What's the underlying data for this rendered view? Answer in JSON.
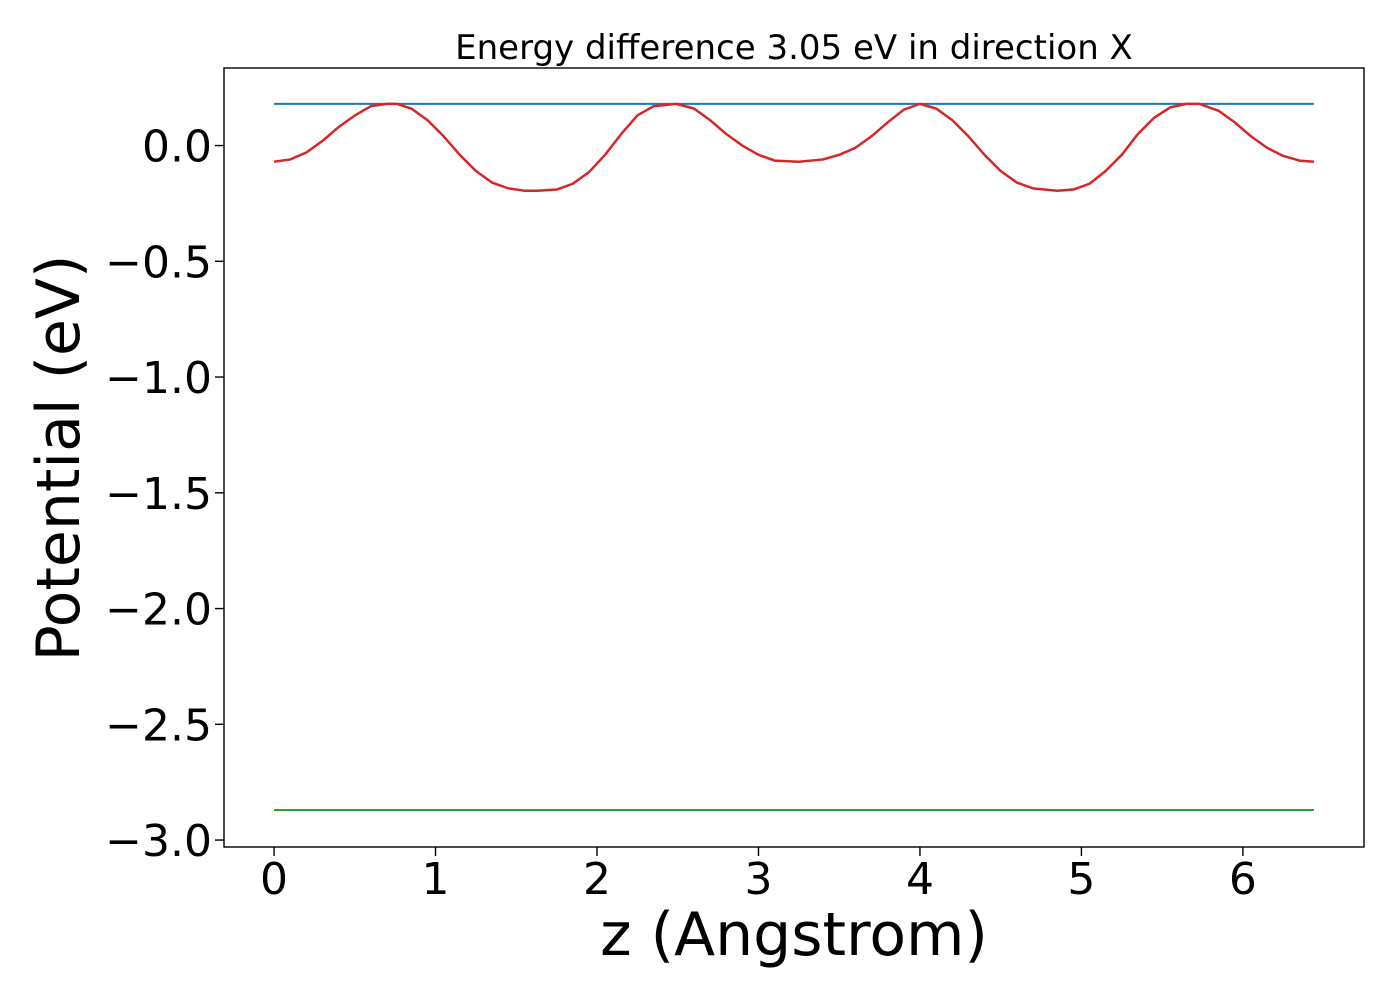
{
  "chart_data": {
    "type": "line",
    "title": "Energy difference 3.05 eV in direction X",
    "xlabel": "z (Angstrom)",
    "ylabel": "Potential (eV)",
    "xlim": [
      -0.31,
      6.75
    ],
    "ylim": [
      -3.03,
      0.335
    ],
    "xticks": [
      0,
      1,
      2,
      3,
      4,
      5,
      6
    ],
    "xtick_labels": [
      "0",
      "1",
      "2",
      "3",
      "4",
      "5",
      "6"
    ],
    "yticks": [
      0.0,
      -0.5,
      -1.0,
      -1.5,
      -2.0,
      -2.5,
      -3.0
    ],
    "ytick_labels": [
      "0.0",
      "−0.5",
      "−1.0",
      "−1.5",
      "−2.0",
      "−2.5",
      "−3.0"
    ],
    "grid": false,
    "legend": "none",
    "series": [
      {
        "color": "#1f77b4",
        "x": [
          0,
          6.44
        ],
        "y": [
          0.18,
          0.18
        ]
      },
      {
        "color": "#2ca02c",
        "x": [
          0,
          6.44
        ],
        "y": [
          -2.87,
          -2.87
        ]
      },
      {
        "color": "#d62728",
        "x": [
          0.0,
          0.1,
          0.2,
          0.3,
          0.4,
          0.5,
          0.6,
          0.7,
          0.76,
          0.85,
          0.95,
          1.05,
          1.15,
          1.25,
          1.35,
          1.45,
          1.55,
          1.63,
          1.75,
          1.85,
          1.95,
          2.05,
          2.15,
          2.25,
          2.35,
          2.49,
          2.6,
          2.7,
          2.8,
          2.9,
          3.0,
          3.1,
          3.25,
          3.4,
          3.5,
          3.6,
          3.7,
          3.8,
          3.9,
          4.0,
          4.1,
          4.2,
          4.3,
          4.4,
          4.5,
          4.6,
          4.7,
          4.85,
          4.95,
          5.05,
          5.15,
          5.25,
          5.35,
          5.45,
          5.55,
          5.65,
          5.73,
          5.85,
          5.95,
          6.05,
          6.15,
          6.25,
          6.35,
          6.44
        ],
        "y": [
          -0.07,
          -0.06,
          -0.03,
          0.02,
          0.08,
          0.13,
          0.17,
          0.18,
          0.18,
          0.16,
          0.11,
          0.04,
          -0.04,
          -0.11,
          -0.16,
          -0.185,
          -0.195,
          -0.195,
          -0.19,
          -0.165,
          -0.115,
          -0.04,
          0.05,
          0.13,
          0.17,
          0.18,
          0.16,
          0.11,
          0.05,
          0.0,
          -0.04,
          -0.065,
          -0.07,
          -0.06,
          -0.04,
          -0.01,
          0.04,
          0.1,
          0.155,
          0.18,
          0.16,
          0.11,
          0.04,
          -0.04,
          -0.11,
          -0.16,
          -0.185,
          -0.195,
          -0.19,
          -0.165,
          -0.11,
          -0.04,
          0.05,
          0.12,
          0.165,
          0.18,
          0.18,
          0.15,
          0.1,
          0.04,
          -0.01,
          -0.045,
          -0.065,
          -0.07
        ]
      }
    ]
  }
}
